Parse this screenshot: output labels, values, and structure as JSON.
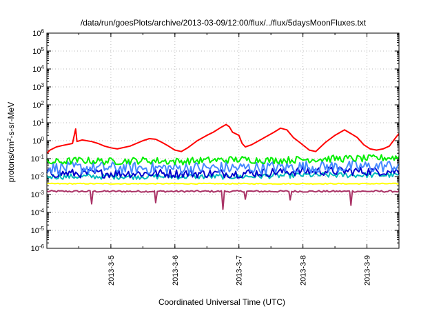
{
  "chart_data": {
    "type": "line",
    "title": "/data/run/goesPlots/archive/2013-03-09/12:00/flux/../flux/5daysMoonFluxes.txt",
    "xlabel": "Coordinated Universal Time (UTC)",
    "ylabel": {
      "base": "protons/cm",
      "sup": "2",
      "rest": "-s-sr-MeV"
    },
    "y_scale": "log",
    "y_exponent_range": [
      -6,
      6
    ],
    "y_ticks": [
      {
        "exp": -6,
        "label": "10",
        "sup": "-6"
      },
      {
        "exp": -5,
        "label": "10",
        "sup": "-5"
      },
      {
        "exp": -4,
        "label": "10",
        "sup": "-4"
      },
      {
        "exp": -3,
        "label": "10",
        "sup": "-3"
      },
      {
        "exp": -2,
        "label": "10",
        "sup": "-2"
      },
      {
        "exp": -1,
        "label": "10",
        "sup": "-1"
      },
      {
        "exp": 0,
        "label": "10",
        "sup": "0"
      },
      {
        "exp": 1,
        "label": "10",
        "sup": "1"
      },
      {
        "exp": 2,
        "label": "10",
        "sup": "2"
      },
      {
        "exp": 3,
        "label": "10",
        "sup": "3"
      },
      {
        "exp": 4,
        "label": "10",
        "sup": "4"
      },
      {
        "exp": 5,
        "label": "10",
        "sup": "5"
      },
      {
        "exp": 6,
        "label": "10",
        "sup": "6"
      }
    ],
    "x_unit": "days since 2013-03-04 00:00 UTC",
    "x_range": [
      0,
      5.5
    ],
    "x_ticks": [
      {
        "x": 1,
        "label": "2013-3-5"
      },
      {
        "x": 2,
        "label": "2013-3-6"
      },
      {
        "x": 3,
        "label": "2013-3-7"
      },
      {
        "x": 4,
        "label": "2013-3-8"
      },
      {
        "x": 5,
        "label": "2013-3-9"
      }
    ],
    "grid": true,
    "legend": "none",
    "series": [
      {
        "color": "#ff0000",
        "points": [
          [
            0.0,
            0.2
          ],
          [
            0.05,
            0.3
          ],
          [
            0.15,
            0.45
          ],
          [
            0.25,
            0.55
          ],
          [
            0.4,
            0.7
          ],
          [
            0.45,
            4.5
          ],
          [
            0.47,
            0.9
          ],
          [
            0.55,
            1.1
          ],
          [
            0.7,
            0.9
          ],
          [
            0.8,
            0.7
          ],
          [
            0.9,
            0.5
          ],
          [
            1.0,
            0.4
          ],
          [
            1.1,
            0.35
          ],
          [
            1.3,
            0.5
          ],
          [
            1.5,
            1.0
          ],
          [
            1.6,
            1.3
          ],
          [
            1.7,
            1.2
          ],
          [
            1.8,
            0.8
          ],
          [
            1.9,
            0.5
          ],
          [
            2.0,
            0.3
          ],
          [
            2.1,
            0.25
          ],
          [
            2.2,
            0.4
          ],
          [
            2.35,
            1.0
          ],
          [
            2.5,
            2.0
          ],
          [
            2.6,
            3.0
          ],
          [
            2.7,
            5.0
          ],
          [
            2.8,
            8.0
          ],
          [
            2.85,
            6.0
          ],
          [
            2.9,
            3.0
          ],
          [
            3.0,
            2.0
          ],
          [
            3.05,
            0.7
          ],
          [
            3.1,
            0.45
          ],
          [
            3.2,
            0.6
          ],
          [
            3.4,
            1.5
          ],
          [
            3.55,
            3.0
          ],
          [
            3.65,
            5.0
          ],
          [
            3.75,
            4.0
          ],
          [
            3.85,
            1.5
          ],
          [
            3.95,
            0.8
          ],
          [
            4.1,
            0.3
          ],
          [
            4.2,
            0.25
          ],
          [
            4.35,
            0.8
          ],
          [
            4.5,
            2.0
          ],
          [
            4.65,
            4.0
          ],
          [
            4.75,
            2.5
          ],
          [
            4.85,
            1.5
          ],
          [
            4.95,
            0.6
          ],
          [
            5.05,
            0.35
          ],
          [
            5.15,
            0.3
          ],
          [
            5.25,
            0.35
          ],
          [
            5.35,
            0.5
          ],
          [
            5.45,
            1.5
          ],
          [
            5.5,
            2.5
          ]
        ]
      },
      {
        "color": "#00ee00",
        "points": [
          [
            0.0,
            0.06
          ],
          [
            0.5,
            0.08
          ],
          [
            1.0,
            0.07
          ],
          [
            1.5,
            0.08
          ],
          [
            2.0,
            0.07
          ],
          [
            2.5,
            0.08
          ],
          [
            3.0,
            0.09
          ],
          [
            3.5,
            0.08
          ],
          [
            4.0,
            0.09
          ],
          [
            4.5,
            0.1
          ],
          [
            5.0,
            0.1
          ],
          [
            5.5,
            0.12
          ]
        ],
        "jitter": 0.4
      },
      {
        "color": "#4488ff",
        "points": [
          [
            0.0,
            0.03
          ],
          [
            1.0,
            0.03
          ],
          [
            2.0,
            0.03
          ],
          [
            3.0,
            0.03
          ],
          [
            4.0,
            0.035
          ],
          [
            5.0,
            0.035
          ],
          [
            5.5,
            0.04
          ]
        ],
        "jitter": 0.7
      },
      {
        "color": "#0000cc",
        "points": [
          [
            0.0,
            0.015
          ],
          [
            1.0,
            0.015
          ],
          [
            2.0,
            0.015
          ],
          [
            3.0,
            0.015
          ],
          [
            4.0,
            0.02
          ],
          [
            5.0,
            0.02
          ],
          [
            5.5,
            0.02
          ]
        ],
        "jitter": 0.5
      },
      {
        "color": "#00bbbb",
        "points": [
          [
            0.0,
            0.01
          ],
          [
            1.0,
            0.01
          ],
          [
            2.0,
            0.01
          ],
          [
            3.0,
            0.01
          ],
          [
            4.0,
            0.012
          ],
          [
            5.0,
            0.012
          ],
          [
            5.5,
            0.012
          ]
        ],
        "jitter": 0.3
      },
      {
        "color": "#ffff00",
        "points": [
          [
            0.0,
            0.004
          ],
          [
            5.5,
            0.004
          ]
        ],
        "jitter": 0.05
      },
      {
        "color": "#aa3366",
        "points": [
          [
            0.0,
            0.0015
          ],
          [
            0.68,
            0.0015
          ],
          [
            0.7,
            0.0003
          ],
          [
            0.72,
            0.0015
          ],
          [
            1.68,
            0.0015
          ],
          [
            1.7,
            0.00035
          ],
          [
            1.72,
            0.0015
          ],
          [
            2.73,
            0.0015
          ],
          [
            2.75,
            0.00015
          ],
          [
            2.77,
            0.0015
          ],
          [
            3.08,
            0.0015
          ],
          [
            3.1,
            0.00055
          ],
          [
            3.12,
            0.0015
          ],
          [
            3.78,
            0.0015
          ],
          [
            3.8,
            0.0005
          ],
          [
            3.82,
            0.0015
          ],
          [
            4.73,
            0.0015
          ],
          [
            4.75,
            0.00025
          ],
          [
            4.77,
            0.0015
          ],
          [
            5.5,
            0.0015
          ]
        ],
        "jitter": 0.1
      }
    ]
  }
}
